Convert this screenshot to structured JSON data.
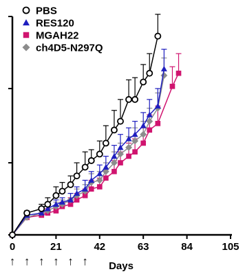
{
  "chart_data": {
    "type": "line",
    "title": "",
    "xlabel": "Days",
    "ylabel": "",
    "xlim": [
      0,
      105
    ],
    "ylim": [
      0,
      100
    ],
    "x_ticks": [
      "0",
      "21",
      "42",
      "63",
      "84",
      "105"
    ],
    "y_ticks": [
      0,
      33,
      67,
      100
    ],
    "grid": false,
    "legend_position": "top-left",
    "dosing_markers": {
      "glyph": "↑",
      "days": [
        0,
        7,
        14,
        21,
        28,
        35
      ]
    },
    "series": [
      {
        "name": "PBS",
        "marker": "circle-open",
        "color": "#000000",
        "x": [
          0,
          7,
          14,
          17,
          21,
          24,
          28,
          31,
          35,
          38,
          42,
          45,
          49,
          52,
          56,
          59,
          63,
          66,
          70
        ],
        "y": [
          0,
          10,
          12,
          14,
          18,
          20,
          23,
          27,
          31,
          34,
          37,
          42,
          48,
          52,
          62,
          62,
          70,
          74,
          91
        ],
        "err": [
          0,
          1,
          2,
          3,
          4,
          4,
          4,
          6,
          7,
          5,
          6,
          8,
          9,
          10,
          9,
          10,
          8,
          9,
          10
        ]
      },
      {
        "name": "RES120",
        "marker": "triangle",
        "color": "#1f1fbf",
        "x": [
          0,
          7,
          14,
          17,
          21,
          24,
          28,
          31,
          35,
          38,
          42,
          45,
          49,
          52,
          56,
          59,
          63,
          66,
          70,
          73
        ],
        "y": [
          0,
          9,
          10,
          12,
          14,
          15,
          16,
          19,
          21,
          25,
          28,
          31,
          36,
          40,
          44,
          46,
          50,
          55,
          59,
          76
        ],
        "err": [
          0,
          1,
          2,
          2,
          2,
          2,
          3,
          3,
          4,
          4,
          4,
          5,
          5,
          6,
          5,
          6,
          6,
          7,
          8,
          9
        ]
      },
      {
        "name": "MGAH22",
        "marker": "square",
        "color": "#d0146f",
        "x": [
          0,
          7,
          14,
          17,
          21,
          24,
          28,
          31,
          35,
          38,
          42,
          45,
          49,
          52,
          56,
          59,
          63,
          66,
          70,
          77,
          80
        ],
        "y": [
          0,
          8,
          9,
          10,
          11,
          13,
          14,
          16,
          18,
          21,
          22,
          26,
          29,
          33,
          36,
          38,
          42,
          48,
          51,
          68,
          74
        ],
        "err": [
          0,
          1,
          1,
          2,
          2,
          2,
          3,
          3,
          3,
          4,
          4,
          4,
          5,
          5,
          6,
          6,
          7,
          7,
          8,
          9,
          9
        ]
      },
      {
        "name": "ch4D5-N297Q",
        "marker": "diamond",
        "color": "#8c8c8c",
        "x": [
          0,
          7,
          14,
          17,
          21,
          24,
          28,
          31,
          35,
          38,
          42,
          45,
          49,
          52,
          56,
          59,
          63,
          66,
          70,
          73
        ],
        "y": [
          0,
          8,
          10,
          11,
          13,
          14,
          16,
          18,
          20,
          24,
          25,
          29,
          33,
          37,
          40,
          43,
          46,
          52,
          58,
          73
        ],
        "err": [
          0,
          1,
          2,
          2,
          2,
          2,
          3,
          3,
          3,
          4,
          4,
          4,
          5,
          5,
          5,
          6,
          6,
          6,
          7,
          8
        ]
      }
    ]
  }
}
